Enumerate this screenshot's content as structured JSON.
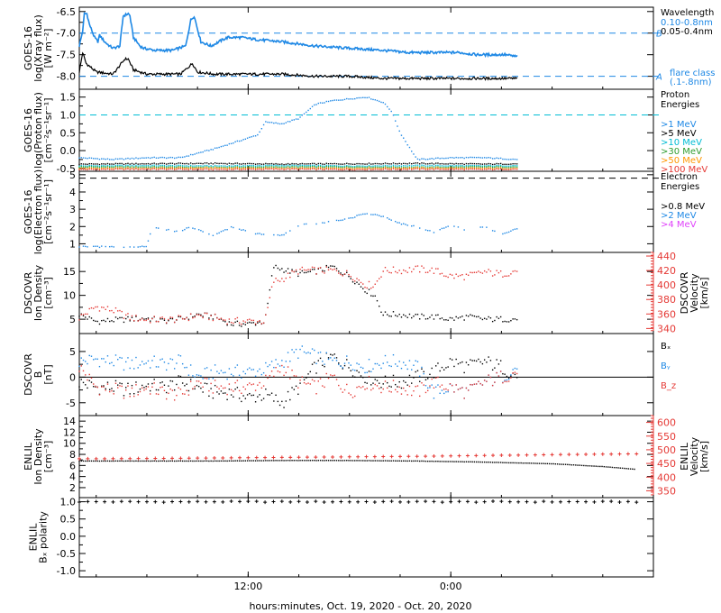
{
  "colors": {
    "black": "#000000",
    "blue": "#1e88e5",
    "cyan": "#00bcd4",
    "green": "#2e9d2e",
    "orange": "#ff9800",
    "red": "#e53935",
    "magenta": "#e040fb"
  },
  "xaxis": {
    "label": "hours:minutes, Oct. 19, 2020 - Oct. 20, 2020",
    "ticks": [
      "12:00",
      "0:00"
    ],
    "tick_hours": [
      12,
      24
    ],
    "range_hours": [
      2,
      36
    ]
  },
  "chart_data": [
    {
      "id": "xray",
      "type": "line",
      "ylabel": [
        "GOES-16",
        "log(Xray flux)",
        "[W m⁻²]"
      ],
      "ylim": [
        -8.3,
        -6.4
      ],
      "yticks": [
        -8.0,
        -7.5,
        -7.0,
        -6.5
      ],
      "ytick_labels": [
        "-8.0",
        "-7.5",
        "-7.0",
        "-6.5"
      ],
      "ref_lines": [
        {
          "y": -7.0,
          "label": "B"
        },
        {
          "y": -8.0,
          "label": "A"
        }
      ],
      "legend_title": [
        "Wavelength"
      ],
      "legend_bottom": [
        "flare class",
        "(.1-.8nm)"
      ],
      "series": [
        {
          "name": "0.10-0.8nm",
          "color": "blue",
          "style": "line",
          "x": [
            2.0,
            2.2,
            2.3,
            2.45,
            2.6,
            2.9,
            3.1,
            3.2,
            3.5,
            3.8,
            4.0,
            4.4,
            4.6,
            4.9,
            5.0,
            5.2,
            5.4,
            5.6,
            5.8,
            6.5,
            7.5,
            8.3,
            8.6,
            8.8,
            9.2,
            9.8,
            10.5,
            10.8,
            11.0,
            11.6,
            12.5,
            14,
            16,
            18,
            20,
            21.5,
            22.5,
            23.5,
            24.5,
            25.5,
            26.5,
            27.2,
            28
          ],
          "y": [
            -7.3,
            -6.95,
            -6.55,
            -6.55,
            -6.8,
            -7.1,
            -7.2,
            -7.05,
            -7.2,
            -7.3,
            -7.35,
            -7.3,
            -6.6,
            -6.55,
            -6.6,
            -7.1,
            -7.2,
            -7.3,
            -7.35,
            -7.4,
            -7.4,
            -7.3,
            -6.7,
            -6.6,
            -7.2,
            -7.3,
            -7.15,
            -7.1,
            -7.1,
            -7.1,
            -7.15,
            -7.2,
            -7.3,
            -7.35,
            -7.4,
            -7.45,
            -7.45,
            -7.45,
            -7.45,
            -7.5,
            -7.5,
            -7.5,
            -7.55
          ]
        },
        {
          "name": "0.05-0.4nm",
          "color": "black",
          "style": "line",
          "x": [
            2.0,
            2.2,
            2.4,
            3.0,
            4.0,
            4.7,
            4.9,
            5.2,
            6.0,
            8.0,
            8.7,
            9.0,
            10,
            12,
            14,
            16,
            18,
            20,
            22,
            24,
            26,
            28
          ],
          "y": [
            -7.9,
            -7.45,
            -7.7,
            -7.9,
            -7.95,
            -7.6,
            -7.6,
            -7.85,
            -7.95,
            -7.95,
            -7.7,
            -7.9,
            -7.95,
            -7.95,
            -7.95,
            -8.0,
            -8.0,
            -8.05,
            -8.05,
            -8.05,
            -8.05,
            -8.05
          ]
        }
      ]
    },
    {
      "id": "proton",
      "type": "scatter",
      "ylabel": [
        "GOES-16",
        "log(Proton flux)",
        "[cm⁻²s⁻¹sr⁻¹]"
      ],
      "ylim": [
        -0.58,
        1.72
      ],
      "yticks": [
        -0.5,
        0.0,
        0.5,
        1.0,
        1.5
      ],
      "ytick_labels": [
        "-0.5",
        "0.0",
        "0.5",
        "1.0",
        "1.5"
      ],
      "ref_lines": [
        {
          "y": 1.0,
          "label": ""
        }
      ],
      "legend_title": [
        "Proton",
        "Energies"
      ],
      "series": [
        {
          "name": ">1 MeV",
          "color": "blue",
          "style": "dots",
          "x": [
            2,
            4,
            6,
            8,
            10,
            11,
            12,
            12.6,
            13,
            14,
            15,
            16,
            17,
            18,
            19,
            20,
            20.5,
            21,
            22,
            24,
            26,
            28
          ],
          "y": [
            -0.2,
            -0.25,
            -0.2,
            -0.2,
            0.05,
            0.2,
            0.35,
            0.45,
            0.8,
            0.75,
            0.9,
            1.3,
            1.4,
            1.45,
            1.5,
            1.35,
            1.1,
            0.5,
            -0.25,
            -0.2,
            -0.2,
            -0.25
          ]
        },
        {
          "name": ">5 MeV",
          "color": "black",
          "style": "dots",
          "x": [
            2,
            6,
            10,
            14,
            18,
            22,
            26,
            28
          ],
          "y": [
            -0.38,
            -0.37,
            -0.36,
            -0.38,
            -0.37,
            -0.36,
            -0.38,
            -0.37
          ]
        },
        {
          "name": ">10 MeV",
          "color": "cyan",
          "style": "dots",
          "x": [
            2,
            6,
            10,
            14,
            18,
            22,
            26,
            28
          ],
          "y": [
            -0.43,
            -0.42,
            -0.43,
            -0.42,
            -0.43,
            -0.42,
            -0.43,
            -0.42
          ]
        },
        {
          "name": ">30 MeV",
          "color": "green",
          "style": "dots",
          "x": [
            2,
            6,
            10,
            14,
            18,
            22,
            26,
            28
          ],
          "y": [
            -0.46,
            -0.46,
            -0.47,
            -0.46,
            -0.46,
            -0.47,
            -0.46,
            -0.46
          ]
        },
        {
          "name": ">50 MeV",
          "color": "orange",
          "style": "dots",
          "x": [
            2,
            6,
            10,
            14,
            18,
            22,
            26,
            28
          ],
          "y": [
            -0.5,
            -0.5,
            -0.49,
            -0.5,
            -0.5,
            -0.49,
            -0.5,
            -0.5
          ]
        },
        {
          "name": ">100 MeV",
          "color": "red",
          "style": "dots",
          "x": [
            2,
            6,
            10,
            14,
            18,
            22,
            26,
            28
          ],
          "y": [
            -0.53,
            -0.52,
            -0.53,
            -0.52,
            -0.53,
            -0.52,
            -0.53,
            -0.52
          ]
        }
      ]
    },
    {
      "id": "electron",
      "type": "scatter",
      "ylabel": [
        "GOES-16",
        "log(Electron flux)",
        "[cm⁻²s⁻¹sr⁻¹]"
      ],
      "ylim": [
        0.5,
        5.2
      ],
      "yticks": [
        1,
        2,
        3,
        4,
        5
      ],
      "ytick_labels": [
        "1",
        "2",
        "3",
        "4",
        "5"
      ],
      "ref_lines": [
        {
          "y": 4.8,
          "label": "",
          "dash_color": "black"
        }
      ],
      "legend_title": [
        "Electron",
        "Energies"
      ],
      "series": [
        {
          "name": ">0.8 MeV",
          "color": "black",
          "style": "none",
          "x": [],
          "y": []
        },
        {
          "name": ">2 MeV",
          "color": "blue",
          "style": "dots",
          "x": [
            2,
            4,
            6,
            6.3,
            8,
            8.5,
            10,
            11,
            12.5,
            14,
            15,
            16,
            17,
            18,
            19,
            20,
            21,
            22,
            23,
            24,
            25,
            26,
            27,
            28
          ],
          "y": [
            0.85,
            0.85,
            0.85,
            2.0,
            1.7,
            2.0,
            1.5,
            2.0,
            1.6,
            1.5,
            2.1,
            2.2,
            2.3,
            2.5,
            2.8,
            2.6,
            2.2,
            2.0,
            1.7,
            2.1,
            1.8,
            2.0,
            1.6,
            1.9
          ]
        },
        {
          "name": ">4 MeV",
          "color": "magenta",
          "style": "none",
          "x": [],
          "y": []
        }
      ]
    },
    {
      "id": "dscovr_plasma",
      "type": "line",
      "ylabel": [
        "DSCOVR",
        "Ion Density",
        "[cm⁻³]"
      ],
      "ylim": [
        2.0,
        19.0
      ],
      "yticks": [
        5,
        10,
        15
      ],
      "ytick_labels": [
        "5",
        "10",
        "15"
      ],
      "right_axis": {
        "ylabel": [
          "DSCOVR",
          "Velocity",
          "[km/s]"
        ],
        "ylim": [
          333,
          445
        ],
        "yticks": [
          340,
          360,
          380,
          400,
          420,
          440
        ],
        "ytick_labels": [
          "340",
          "360",
          "380",
          "400",
          "420",
          "440"
        ]
      },
      "series": [
        {
          "name": "Ion Density",
          "color": "black",
          "style": "dots",
          "axis": "left",
          "x": [
            2,
            3,
            4,
            5,
            6,
            7,
            8,
            9,
            10,
            11,
            12,
            13,
            13.5,
            14,
            15,
            16,
            17,
            18,
            19,
            19.5,
            20,
            21,
            22,
            23,
            24,
            25,
            26,
            27,
            28
          ],
          "y": [
            6,
            4.5,
            4.8,
            5.0,
            5.2,
            4.6,
            5.0,
            6.0,
            5.5,
            4.0,
            4.0,
            4.5,
            16,
            15.5,
            14.5,
            15,
            16,
            14,
            11,
            10,
            6,
            6,
            5.5,
            5.5,
            5.0,
            5.5,
            5.0,
            5.0,
            5.0
          ]
        },
        {
          "name": "Velocity",
          "color": "red",
          "style": "dots",
          "axis": "right",
          "x": [
            2,
            3,
            4,
            5,
            6,
            7,
            8,
            9,
            10,
            11,
            12,
            13,
            13.5,
            14,
            15,
            16,
            17,
            18,
            19,
            19.5,
            20,
            21,
            22,
            23,
            24,
            25,
            26,
            27,
            28
          ],
          "y": [
            355,
            370,
            365,
            355,
            352,
            352,
            353,
            358,
            355,
            350,
            350,
            350,
            405,
            408,
            420,
            420,
            420,
            415,
            400,
            400,
            420,
            420,
            422,
            420,
            412,
            412,
            418,
            415,
            420
          ]
        }
      ]
    },
    {
      "id": "dscovr_mag",
      "type": "line",
      "ylabel": [
        "DSCOVR",
        "B",
        "[nT]"
      ],
      "ylim": [
        -7.5,
        8.5
      ],
      "yticks": [
        -5,
        0,
        5
      ],
      "ytick_labels": [
        "-5",
        "0",
        "5"
      ],
      "zero_line": true,
      "series": [
        {
          "name": "Bₓ",
          "color": "black",
          "style": "dots",
          "x": [
            2,
            3,
            4,
            5,
            6,
            7,
            8,
            9,
            10,
            11,
            12,
            13,
            14,
            15,
            16,
            17,
            18,
            19,
            20,
            21,
            22,
            23,
            24,
            25,
            26,
            27,
            28
          ],
          "y": [
            -1,
            -2,
            -2,
            -2.5,
            -1.5,
            -2,
            -1,
            -2,
            -3,
            -3,
            -4,
            -3.5,
            -5,
            -2,
            2,
            4,
            2,
            0,
            -1,
            -1,
            0,
            1,
            3,
            2,
            3,
            2,
            0
          ]
        },
        {
          "name": "Bᵧ",
          "color": "blue",
          "style": "dots",
          "x": [
            2,
            3,
            4,
            5,
            6,
            7,
            8,
            9,
            10,
            11,
            12,
            13,
            14,
            15,
            16,
            17,
            18,
            19,
            20,
            21,
            22,
            23,
            24,
            25,
            26,
            27,
            28
          ],
          "y": [
            3,
            3.5,
            3,
            2.5,
            3,
            2.5,
            3,
            0,
            1,
            1,
            1,
            1.5,
            3,
            5,
            4,
            3,
            3,
            2,
            3,
            3,
            2,
            -3,
            -2,
            -3,
            -1,
            0,
            2
          ]
        },
        {
          "name": "B_z",
          "color": "red",
          "style": "dots",
          "x": [
            2,
            3,
            4,
            5,
            6,
            7,
            8,
            9,
            10,
            11,
            12,
            13,
            14,
            15,
            16,
            17,
            18,
            19,
            20,
            21,
            22,
            23,
            24,
            25,
            26,
            27,
            28
          ],
          "y": [
            2,
            -2,
            -2.5,
            -3,
            -2,
            -3,
            -3.5,
            -1,
            -2,
            -2,
            -2,
            -1,
            2,
            -1,
            -2,
            0,
            -3,
            -1,
            -2,
            -2,
            -3,
            -1,
            -2,
            -3,
            -1,
            0,
            1
          ]
        }
      ]
    },
    {
      "id": "enlil_plasma",
      "type": "line",
      "ylabel": [
        "ENLIL",
        "Ion Density",
        "[cm⁻³]"
      ],
      "ylim": [
        0.2,
        15.0
      ],
      "yticks": [
        2,
        4,
        6,
        8,
        10,
        12,
        14
      ],
      "ytick_labels": [
        "2",
        "4",
        "6",
        "8",
        "10",
        "12",
        "14"
      ],
      "right_axis": {
        "ylabel": [
          "ENLIL",
          "Velocity",
          "[km/s]"
        ],
        "ylim": [
          325,
          625
        ],
        "yticks": [
          350,
          400,
          450,
          500,
          550,
          600
        ],
        "ytick_labels": [
          "350",
          "400",
          "450",
          "500",
          "550",
          "600"
        ]
      },
      "series": [
        {
          "name": "Ion Density",
          "color": "black",
          "style": "dots",
          "axis": "left",
          "x": [
            2,
            6,
            10,
            14,
            18,
            22,
            26,
            30,
            33,
            35
          ],
          "y": [
            6.8,
            6.8,
            6.8,
            6.9,
            6.9,
            6.8,
            6.6,
            6.3,
            5.8,
            5.3
          ]
        },
        {
          "name": "Velocity",
          "color": "red",
          "style": "plus",
          "axis": "right",
          "x": [
            2,
            6,
            10,
            14,
            18,
            22,
            26,
            30,
            33,
            35
          ],
          "y": [
            467,
            468,
            470,
            472,
            474,
            476,
            479,
            482,
            484,
            485
          ]
        }
      ]
    },
    {
      "id": "enlil_polarity",
      "type": "scatter",
      "ylabel": [
        "ENLIL",
        "Bₓ polarity"
      ],
      "ylim": [
        -1.18,
        1.12
      ],
      "yticks": [
        -1.0,
        -0.5,
        0.0,
        0.5,
        1.0
      ],
      "ytick_labels": [
        "-1.0",
        "-0.5",
        "0.0",
        "0.5",
        "1.0"
      ],
      "yticks_minor_only": [
        -0.75,
        -0.25,
        0.25,
        0.75
      ],
      "series": [
        {
          "name": "Bₓ polarity",
          "color": "black",
          "style": "plus",
          "x": [
            2,
            6,
            10,
            14,
            18,
            22,
            26,
            30,
            35
          ],
          "y": [
            1,
            1,
            1,
            1,
            1,
            1,
            1,
            1,
            1
          ]
        }
      ]
    }
  ]
}
